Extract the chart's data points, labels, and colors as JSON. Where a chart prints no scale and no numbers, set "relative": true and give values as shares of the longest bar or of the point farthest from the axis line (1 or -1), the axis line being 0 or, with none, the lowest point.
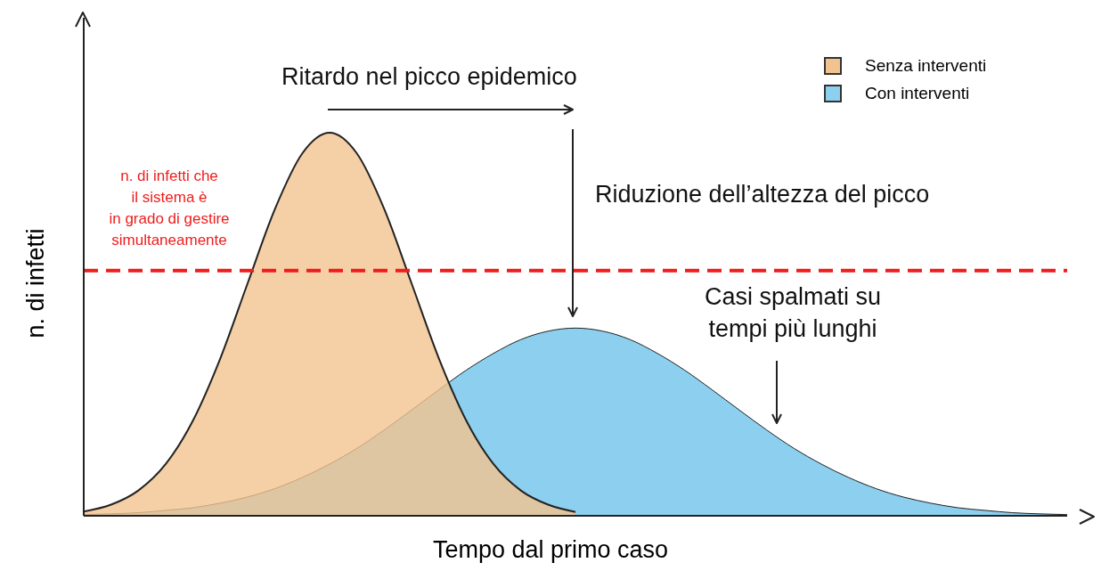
{
  "chart_data": {
    "type": "area",
    "relative": true,
    "xlabel": "Tempo dal primo caso",
    "ylabel": "n. di infetti",
    "categories": [
      null,
      null,
      null,
      null,
      null,
      null,
      null,
      null,
      null,
      null,
      null,
      null,
      null,
      null,
      null,
      null,
      null,
      null,
      null,
      null,
      null,
      null,
      null,
      null,
      null,
      null,
      null,
      null,
      null,
      null,
      null,
      null,
      null,
      null,
      null,
      null,
      null
    ],
    "series": [
      {
        "name": "Senza interventi",
        "color": "#f2c38e",
        "values": [
          0.011,
          0.029,
          0.066,
          0.135,
          0.249,
          0.411,
          0.607,
          0.801,
          0.946,
          1,
          0.946,
          0.801,
          0.607,
          0.411,
          0.249,
          0.135,
          0.066,
          0.029,
          0.01,
          null,
          null,
          null,
          null,
          null,
          null,
          null,
          null,
          null,
          null,
          null,
          null,
          null,
          null,
          null,
          null,
          null,
          null
        ]
      },
      {
        "name": "Con interventi",
        "color": "#8ccfee",
        "values": [
          0.003,
          0.005,
          0.008,
          0.014,
          0.021,
          0.033,
          0.049,
          0.071,
          0.1,
          0.135,
          0.176,
          0.224,
          0.276,
          0.329,
          0.38,
          0.424,
          0.46,
          0.482,
          0.49,
          0.482,
          0.46,
          0.424,
          0.38,
          0.329,
          0.276,
          0.224,
          0.176,
          0.135,
          0.1,
          0.071,
          0.049,
          0.033,
          0.021,
          0.014,
          0.008,
          0.005,
          0.003
        ]
      }
    ],
    "ref_lines": [
      {
        "axis": "y",
        "value": 0.64,
        "label": "n. di infetti che\nil sistema è\nin grado di gestire\nsimultaneamente",
        "color": "#ee1c1c",
        "line_style": "dashed"
      }
    ],
    "annotations": [
      "Ritardo nel picco epidemico",
      "Riduzione dell’altezza del picco",
      "Casi spalmati su\ntempi più lunghi"
    ],
    "legend": "top right"
  }
}
